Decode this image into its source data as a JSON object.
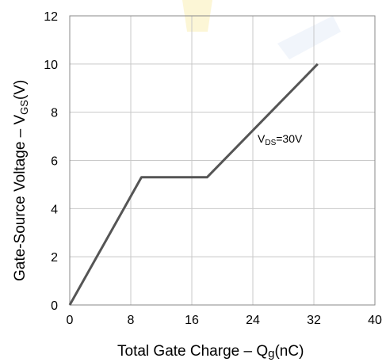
{
  "chart_data": {
    "type": "line",
    "xlabel": {
      "main": "Total Gate Charge  –  Q",
      "sub": "g",
      "tail": "(nC)"
    },
    "ylabel": {
      "main": "Gate-Source Voltage  –  V",
      "sub": "GS",
      "tail": "(V)"
    },
    "xlim": [
      0,
      40
    ],
    "ylim": [
      0,
      12
    ],
    "x_ticks": [
      "0",
      "8",
      "16",
      "24",
      "32",
      "40"
    ],
    "y_ticks": [
      "0",
      "2",
      "4",
      "6",
      "8",
      "10",
      "12"
    ],
    "grid": true,
    "series": [
      {
        "x": [
          0,
          9.4,
          18.0,
          32.5
        ],
        "y": [
          0,
          5.3,
          5.3,
          10.0
        ],
        "color": "#555555"
      }
    ],
    "annotation": {
      "main": "V",
      "sub": "DS",
      "tail": "=30V"
    },
    "colors": {
      "grid": "#c8c8c8",
      "axis": "#888888",
      "watermark": "#f5e080"
    }
  }
}
